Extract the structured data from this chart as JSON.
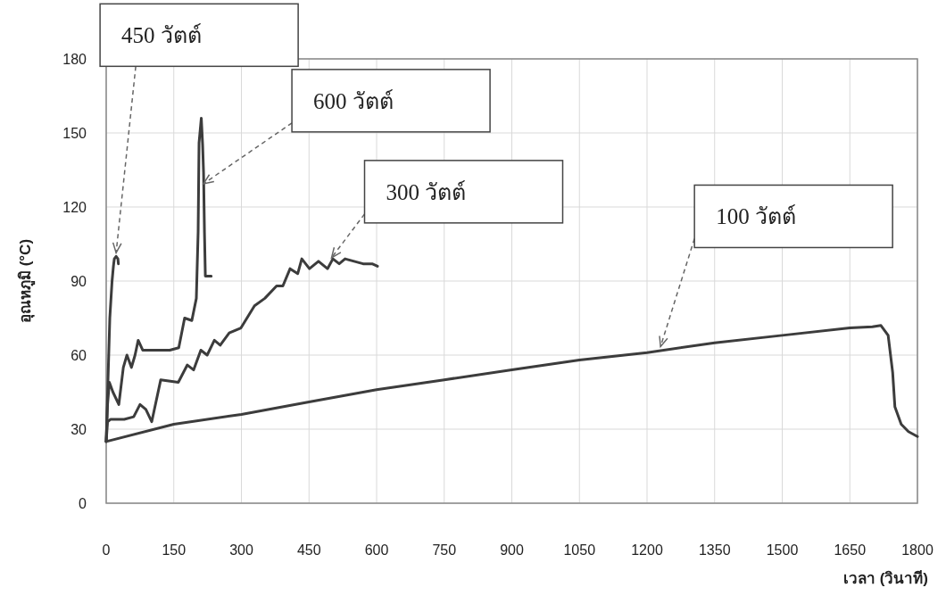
{
  "chart_data": {
    "type": "line",
    "xlabel": "เวลา (วินาที)",
    "ylabel": "อุณหภูมิ (°C)",
    "xlim": [
      0,
      1800
    ],
    "xticks": [
      0,
      150,
      300,
      450,
      600,
      750,
      900,
      1050,
      1200,
      1350,
      1500,
      1650,
      1800
    ],
    "ylim": [
      0,
      180
    ],
    "yticks": [
      0,
      30,
      60,
      90,
      120,
      150,
      180
    ],
    "grid": true,
    "line_style": "solid",
    "series": [
      {
        "color": "#3c3c3c",
        "x": [
          0,
          4,
          8,
          13,
          16,
          18,
          22,
          26,
          27
        ],
        "values": [
          25,
          50,
          75,
          90,
          96,
          99,
          100,
          99,
          97
        ]
      },
      {
        "color": "#3c3c3c",
        "x": [
          0,
          3,
          7,
          15,
          28,
          38,
          46,
          56,
          64,
          71,
          81,
          100,
          141,
          161,
          174,
          190,
          200,
          204,
          206,
          211,
          214,
          216,
          218,
          220,
          233
        ],
        "values": [
          25,
          40,
          49,
          45,
          40,
          55,
          60,
          55,
          60,
          66,
          62,
          62,
          62,
          63,
          75,
          74,
          83,
          110,
          146,
          156,
          145,
          134,
          110,
          92,
          92
        ]
      },
      {
        "color": "#3c3c3c",
        "x": [
          0,
          3,
          10,
          40,
          61,
          75,
          88,
          101,
          121,
          160,
          180,
          194,
          210,
          224,
          240,
          253,
          273,
          299,
          329,
          352,
          378,
          392,
          408,
          425,
          434,
          451,
          471,
          491,
          503,
          517,
          530,
          570,
          590,
          602
        ],
        "values": [
          25,
          33,
          34,
          34,
          35,
          40,
          38,
          33,
          50,
          49,
          56,
          54,
          62,
          60,
          66,
          64,
          69,
          71,
          80,
          83,
          88,
          88,
          95,
          93,
          99,
          95,
          98,
          95,
          99,
          97,
          99,
          97,
          97,
          96
        ]
      },
      {
        "color": "#3c3c3c",
        "x": [
          0,
          150,
          300,
          450,
          600,
          750,
          900,
          1050,
          1200,
          1350,
          1500,
          1650,
          1700,
          1719,
          1735,
          1745,
          1750,
          1764,
          1780,
          1800
        ],
        "values": [
          25,
          32,
          36,
          41,
          46,
          50,
          54,
          58,
          61,
          65,
          68,
          71,
          71.5,
          72,
          68,
          53,
          39,
          32,
          29,
          27
        ]
      }
    ],
    "annotations": [
      {
        "text": "450 วัตต์",
        "x": 22,
        "y": 100
      },
      {
        "text": "600 วัตต์",
        "x": 216,
        "y": 128
      },
      {
        "text": "300 วัตต์",
        "x": 500,
        "y": 98
      },
      {
        "text": "100 วัตต์",
        "x": 1230,
        "y": 62
      }
    ]
  }
}
